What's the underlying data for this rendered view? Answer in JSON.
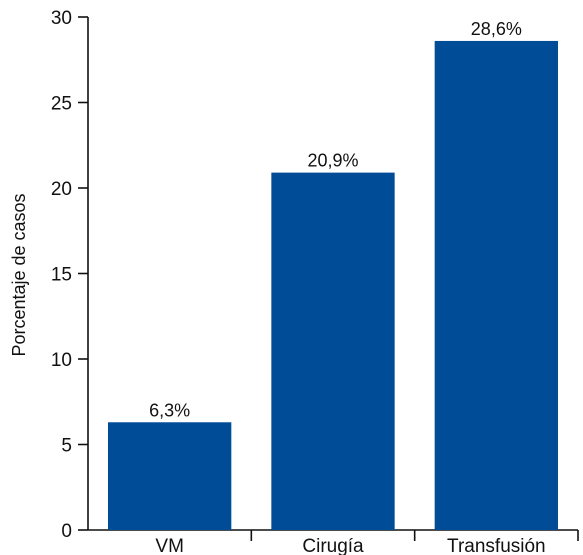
{
  "chart_data": {
    "type": "bar",
    "categories": [
      "VM",
      "Cirugía",
      "Transfusión"
    ],
    "values": [
      6.3,
      20.9,
      28.6
    ],
    "data_labels": [
      "6,3%",
      "20,9%",
      "28,6%"
    ],
    "ylabel": "Porcentaje de casos",
    "xlabel": "",
    "ylim": [
      0,
      30
    ],
    "yticks": [
      0,
      5,
      10,
      15,
      20,
      25,
      30
    ],
    "grid": false,
    "bar_color": "#004c97"
  }
}
